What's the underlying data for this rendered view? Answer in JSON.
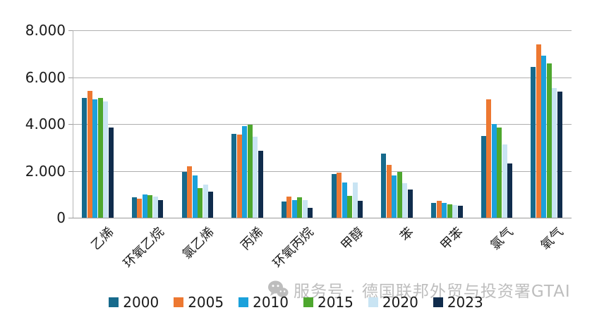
{
  "chart_data": {
    "type": "bar",
    "title": "",
    "xlabel": "",
    "ylabel": "",
    "ylim": [
      0,
      8000
    ],
    "ymax": 8000,
    "grid": true,
    "legend_position": "bottom",
    "y_tick_labels": [
      "8.000",
      "6.000",
      "4.000",
      "2.000",
      "0"
    ],
    "categories": [
      "乙烯",
      "环氧乙烷",
      "氯乙烯",
      "丙烯",
      "环氧丙烷",
      "甲醇",
      "苯",
      "甲苯",
      "氯气",
      "氧气"
    ],
    "series": [
      {
        "name": "2000",
        "color": "#176A8C",
        "values": [
          5100,
          870,
          1950,
          3580,
          700,
          1870,
          2750,
          620,
          3480,
          6430
        ]
      },
      {
        "name": "2005",
        "color": "#ED7831",
        "values": [
          5400,
          820,
          2200,
          3550,
          890,
          1920,
          2250,
          730,
          5050,
          7400
        ]
      },
      {
        "name": "2010",
        "color": "#1BA1DB",
        "values": [
          5050,
          1000,
          1800,
          3900,
          740,
          1500,
          1820,
          620,
          4000,
          6930
        ]
      },
      {
        "name": "2015",
        "color": "#4EA72E",
        "values": [
          5120,
          950,
          1250,
          3980,
          860,
          930,
          1970,
          570,
          3850,
          6600
        ]
      },
      {
        "name": "2020",
        "color": "#C9E4F3",
        "values": [
          4950,
          900,
          1400,
          3450,
          740,
          1500,
          1460,
          530,
          3140,
          5540
        ]
      },
      {
        "name": "2023",
        "color": "#102C4C",
        "values": [
          3850,
          760,
          1100,
          2870,
          430,
          720,
          1200,
          500,
          2320,
          5370
        ]
      }
    ]
  },
  "watermark": {
    "text": "服务号 · 德国联邦外贸与投资署GTAI",
    "icon": "wechat-icon"
  },
  "colors": {
    "background": "#FFFFFF",
    "grid": "#AFAFAF",
    "axis": "#9B9B9B",
    "text": "#1A1A1A",
    "watermark": "#BDBDBD"
  }
}
